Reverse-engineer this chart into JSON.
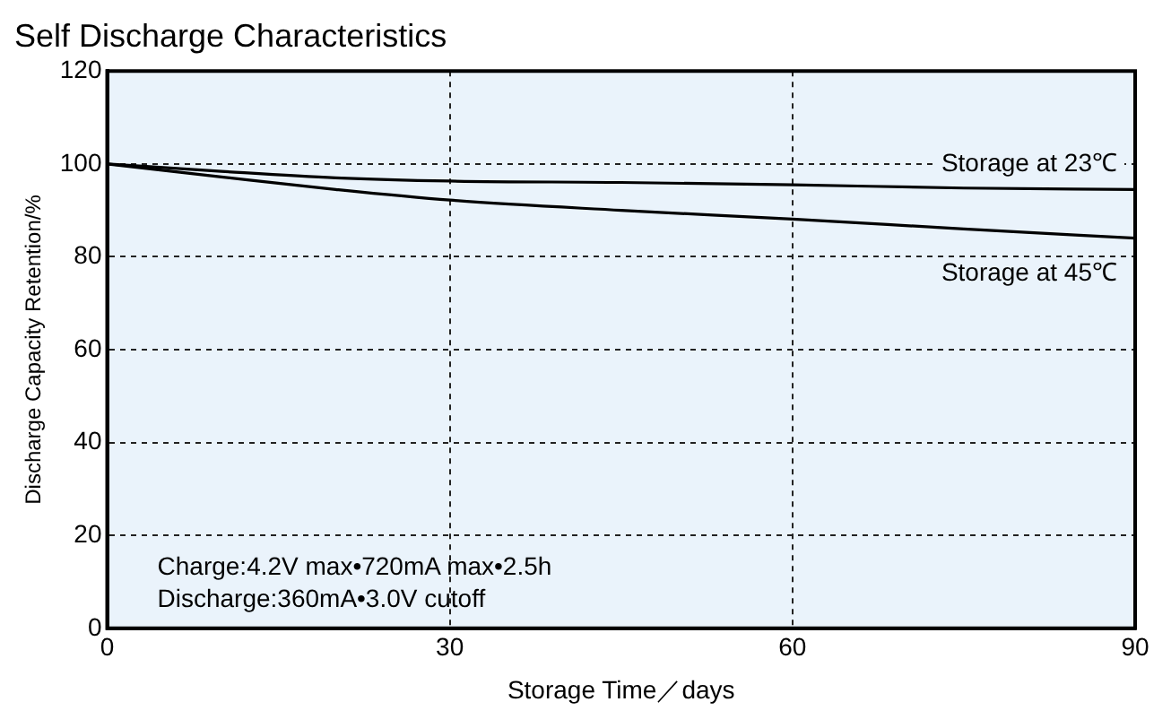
{
  "chart_data": {
    "type": "line",
    "title": "Self Discharge Characteristics",
    "xlabel": "Storage Time／days",
    "ylabel": "Discharge Capacity Retention/%",
    "xlim": [
      0,
      90
    ],
    "xticks": [
      0,
      30,
      60,
      90
    ],
    "ylim": [
      0,
      120
    ],
    "yticks": [
      0,
      20,
      40,
      60,
      80,
      100,
      120
    ],
    "grid": true,
    "marker": "none",
    "line_style": "solid",
    "series": [
      {
        "name": "Storage at 23℃",
        "color": "#000000",
        "x": [
          0,
          10,
          20,
          30,
          45,
          60,
          75,
          90
        ],
        "values": [
          100,
          98.4,
          97,
          96.3,
          96,
          95.5,
          94.8,
          94.5
        ]
      },
      {
        "name": "Storage at 45℃",
        "color": "#000000",
        "x": [
          0,
          10,
          20,
          30,
          45,
          60,
          75,
          90
        ],
        "values": [
          100,
          97.2,
          94.5,
          92.2,
          90,
          88.1,
          86,
          84
        ]
      }
    ],
    "annotations": [
      "Charge:4.2V max•720mA max•2.5h",
      "Discharge:360mA•3.0V cutoff"
    ]
  }
}
